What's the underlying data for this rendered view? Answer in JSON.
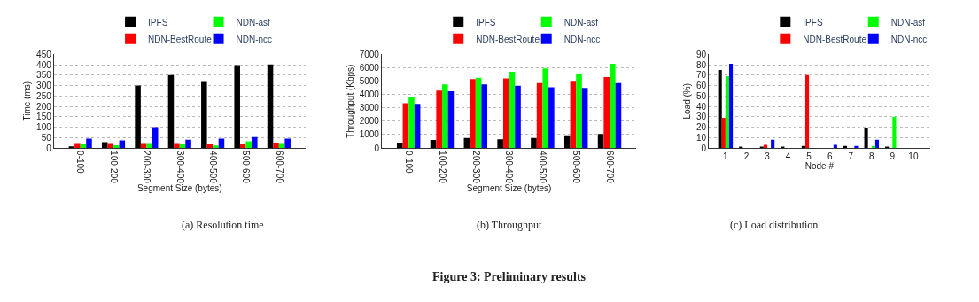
{
  "chart_data": [
    {
      "type": "bar",
      "xlabel": "Segment Size (bytes)",
      "ylabel": "Time (ms)",
      "categories": [
        "0-100",
        "100-200",
        "200-300",
        "300-400",
        "400-500",
        "500-600",
        "600-700"
      ],
      "series": [
        {
          "name": "IPFS",
          "color": "#000000",
          "values": [
            8,
            28,
            300,
            350,
            318,
            398,
            402
          ]
        },
        {
          "name": "NDN-BestRoute",
          "color": "#ff0000",
          "values": [
            20,
            20,
            20,
            20,
            17,
            17,
            25
          ]
        },
        {
          "name": "NDN-asf",
          "color": "#00ff00",
          "values": [
            17,
            13,
            20,
            17,
            12,
            32,
            20
          ]
        },
        {
          "name": "NDN-ncc",
          "color": "#0000ff",
          "values": [
            45,
            37,
            100,
            40,
            45,
            52,
            45
          ]
        }
      ],
      "ylim": [
        0,
        450
      ],
      "yticks": [
        0,
        50,
        100,
        150,
        200,
        250,
        300,
        350,
        400,
        450
      ],
      "grid": "y",
      "legend": "top",
      "annotations": [
        "(a) Resolution time"
      ]
    },
    {
      "type": "bar",
      "xlabel": "Segment Size (bytes)",
      "ylabel": "Throughput (Kbps)",
      "categories": [
        "0-100",
        "100-200",
        "200-300",
        "300-400",
        "400-500",
        "500-600",
        "600-700"
      ],
      "series": [
        {
          "name": "IPFS",
          "color": "#000000",
          "values": [
            350,
            600,
            750,
            650,
            750,
            950,
            1050
          ]
        },
        {
          "name": "NDN-BestRoute",
          "color": "#ff0000",
          "values": [
            3350,
            4300,
            5150,
            5200,
            4850,
            4950,
            5300
          ]
        },
        {
          "name": "NDN-asf",
          "color": "#00ff00",
          "values": [
            3850,
            4750,
            5250,
            5700,
            5950,
            5550,
            6300
          ]
        },
        {
          "name": "NDN-ncc",
          "color": "#0000ff",
          "values": [
            3300,
            4250,
            4750,
            4650,
            4550,
            4500,
            4850
          ]
        }
      ],
      "ylim": [
        0,
        7000
      ],
      "yticks": [
        0,
        1000,
        2000,
        3000,
        4000,
        5000,
        6000,
        7000
      ],
      "grid": "y",
      "legend": "top",
      "annotations": [
        "(b) Throughput",
        "Figure 3: Preliminary results"
      ]
    },
    {
      "type": "bar",
      "xlabel": "Node #",
      "ylabel": "Load (%)",
      "categories": [
        "1",
        "2",
        "3",
        "4",
        "5",
        "6",
        "7",
        "8",
        "9",
        "10"
      ],
      "series": [
        {
          "name": "IPFS",
          "color": "#000000",
          "values": [
            75,
            1,
            1,
            1,
            2,
            0,
            2,
            19,
            1,
            0
          ]
        },
        {
          "name": "NDN-BestRoute",
          "color": "#ff0000",
          "values": [
            29,
            0,
            3,
            0,
            70,
            0,
            0,
            0,
            0,
            0
          ]
        },
        {
          "name": "NDN-asf",
          "color": "#00ff00",
          "values": [
            69,
            0,
            0,
            0,
            0,
            0,
            0,
            2,
            30,
            0
          ]
        },
        {
          "name": "NDN-ncc",
          "color": "#0000ff",
          "values": [
            81,
            0,
            8,
            0,
            0,
            3,
            2,
            8,
            0,
            0
          ]
        }
      ],
      "ylim": [
        0,
        90
      ],
      "yticks": [
        0,
        10,
        20,
        30,
        40,
        50,
        60,
        70,
        80,
        90
      ],
      "grid": "y",
      "legend": "top",
      "annotations": [
        "(c) Load distribution"
      ]
    }
  ]
}
